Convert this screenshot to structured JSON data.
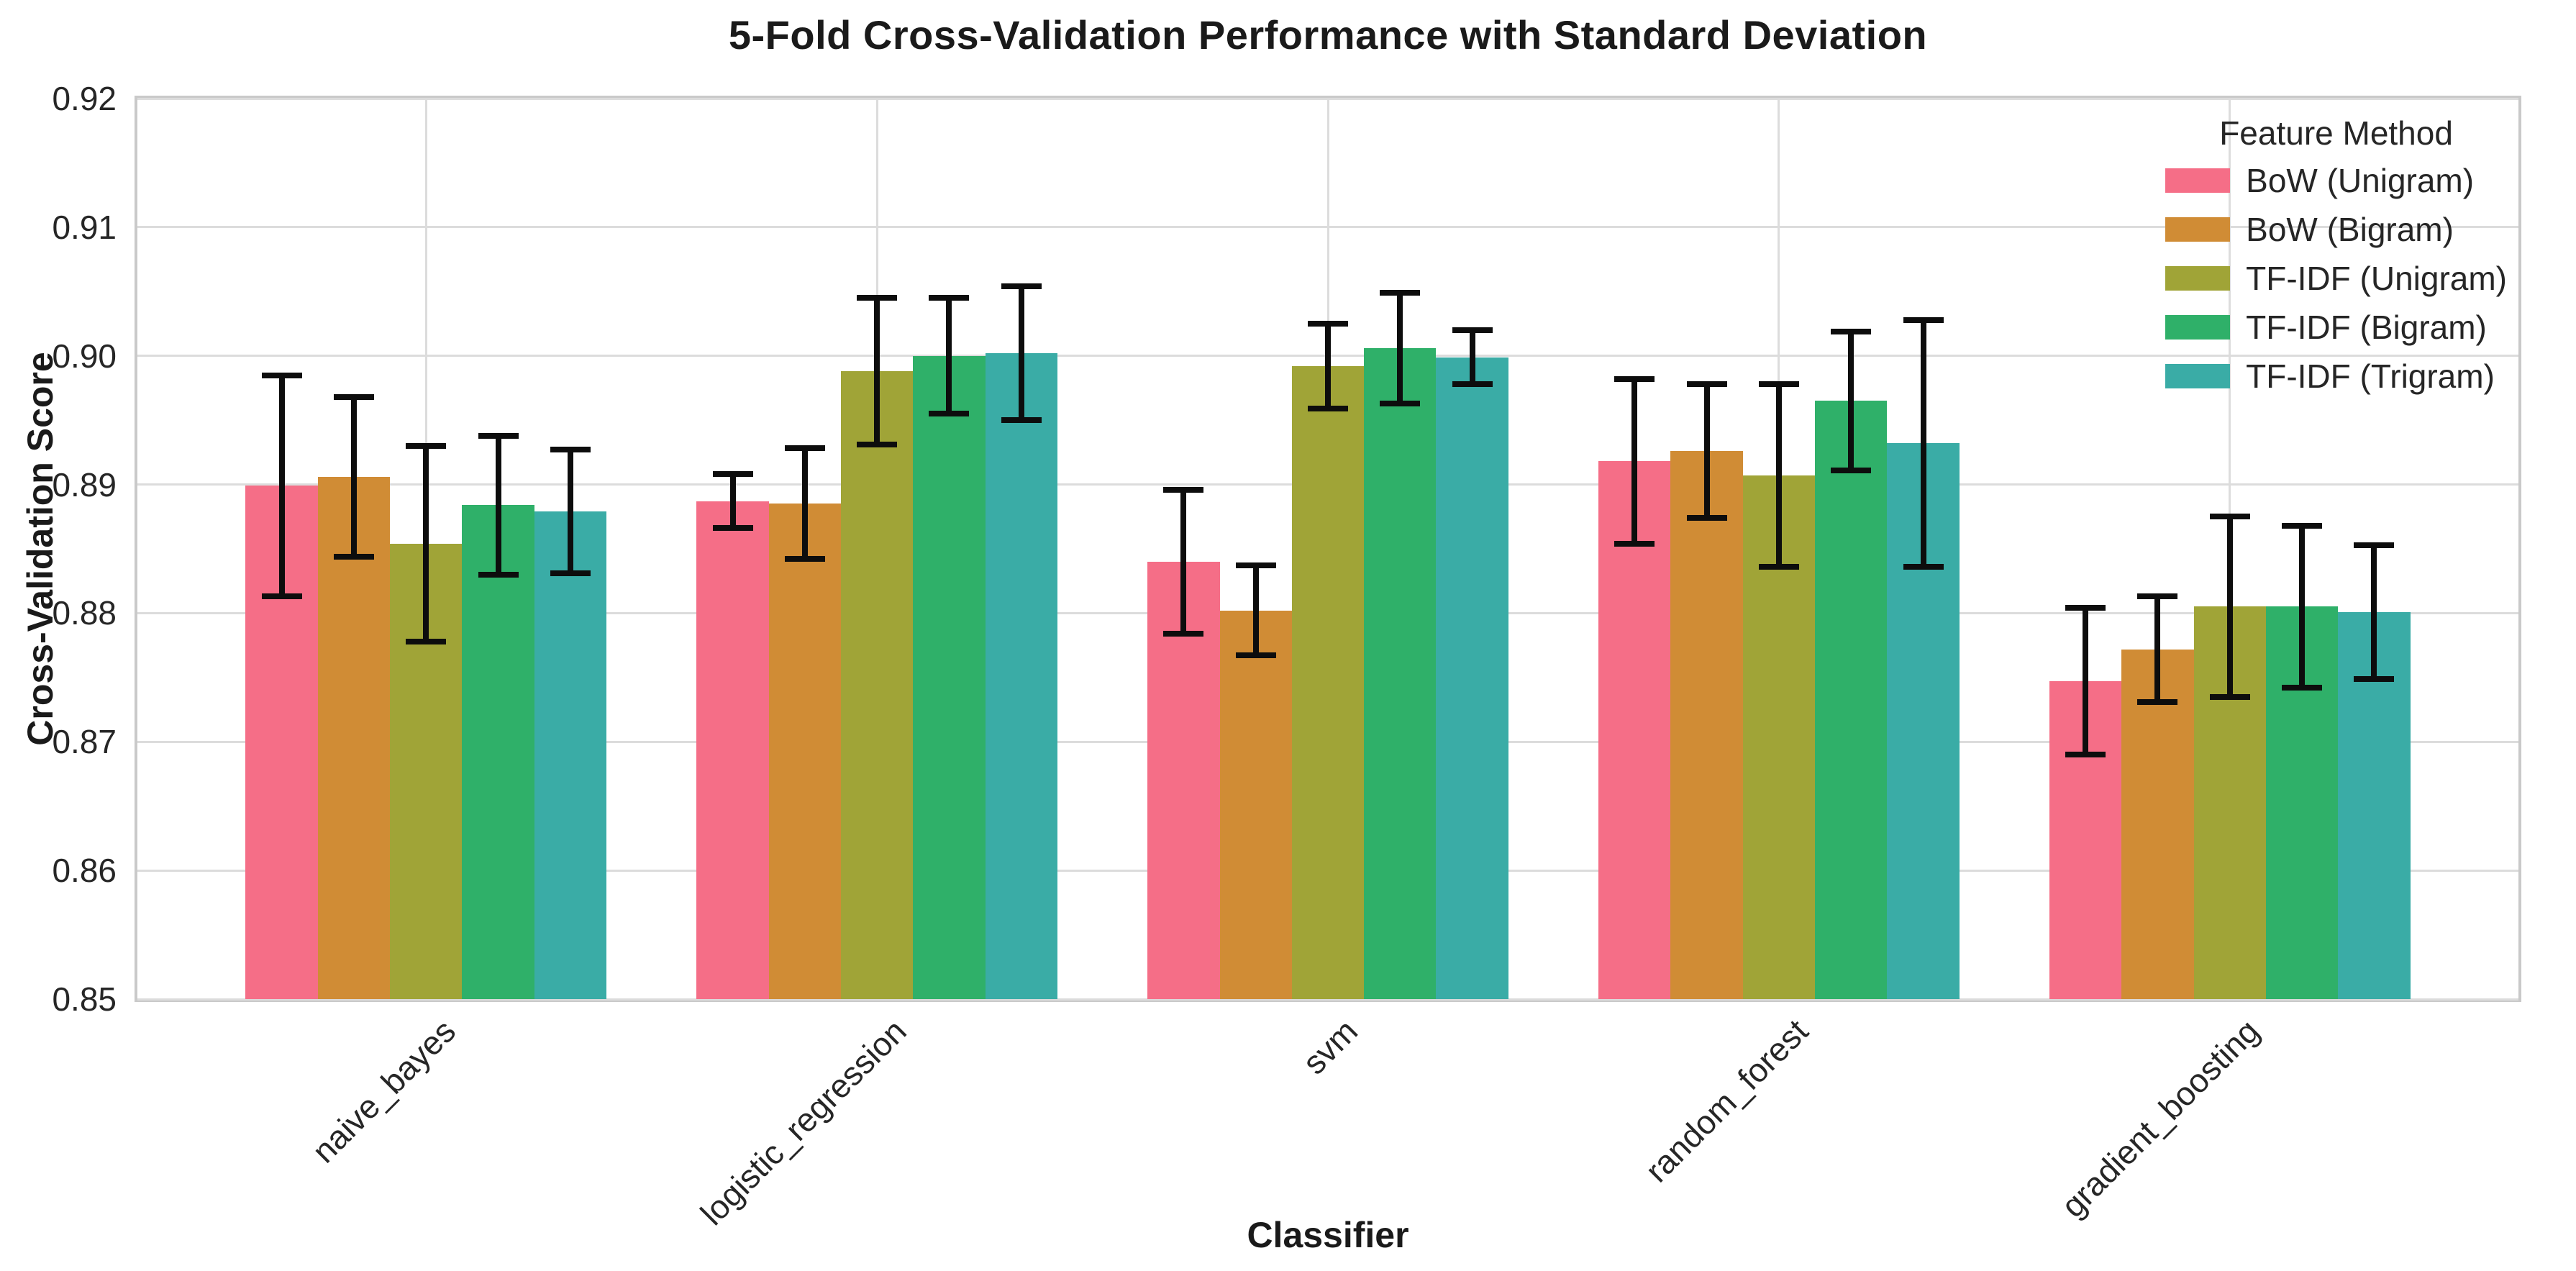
{
  "chart_data": {
    "type": "bar",
    "title": "5-Fold Cross-Validation Performance with Standard Deviation",
    "xlabel": "Classifier",
    "ylabel": "Cross-Validation Score",
    "ylim": [
      0.85,
      0.92
    ],
    "y_ticks": [
      "0.85",
      "0.86",
      "0.87",
      "0.88",
      "0.89",
      "0.90",
      "0.91",
      "0.92"
    ],
    "grid": true,
    "error_bars": true,
    "legend": {
      "title": "Feature Method",
      "position": "upper right"
    },
    "categories": [
      "naive_bayes",
      "logistic_regression",
      "svm",
      "random_forest",
      "gradient_boosting"
    ],
    "series": [
      {
        "name": "BoW (Unigram)",
        "color": "#f56e87",
        "values": [
          0.8899,
          0.8887,
          0.884,
          0.8918,
          0.8747
        ],
        "std": [
          0.0086,
          0.0021,
          0.0056,
          0.0064,
          0.0057
        ]
      },
      {
        "name": "BoW (Bigram)",
        "color": "#d08c35",
        "values": [
          0.8906,
          0.8885,
          0.8802,
          0.8926,
          0.8772
        ],
        "std": [
          0.0062,
          0.0043,
          0.0035,
          0.0052,
          0.0041
        ]
      },
      {
        "name": "TF-IDF (Unigram)",
        "color": "#a0a437",
        "values": [
          0.8854,
          0.8988,
          0.8992,
          0.8907,
          0.8805
        ],
        "std": [
          0.0076,
          0.0057,
          0.0033,
          0.0071,
          0.007
        ]
      },
      {
        "name": "TF-IDF (Bigram)",
        "color": "#2fb069",
        "values": [
          0.8884,
          0.9,
          0.9006,
          0.8965,
          0.8805
        ],
        "std": [
          0.0054,
          0.0045,
          0.0043,
          0.0054,
          0.0063
        ]
      },
      {
        "name": "TF-IDF (Trigram)",
        "color": "#3aaca6",
        "values": [
          0.8879,
          0.9002,
          0.8999,
          0.8932,
          0.8801
        ],
        "std": [
          0.0048,
          0.0052,
          0.0021,
          0.0096,
          0.0052
        ]
      }
    ]
  }
}
